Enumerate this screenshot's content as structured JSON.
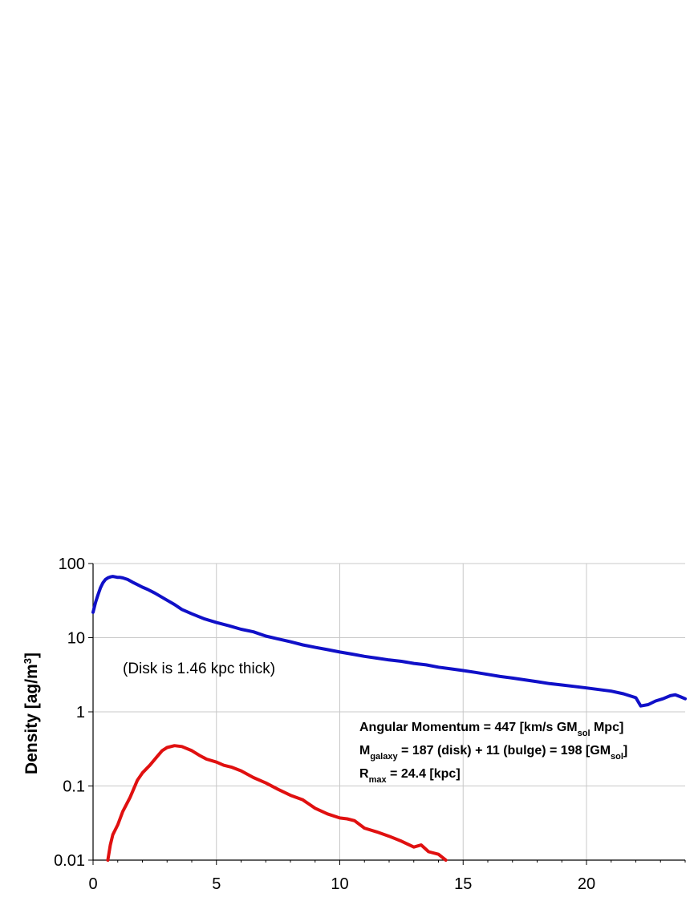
{
  "chart_data": {
    "type": "line",
    "ylabel_main": "Density [ag/m",
    "ylabel_sup": "3",
    "ylabel_end": "]",
    "y_scale": "log",
    "xlim": [
      0,
      24
    ],
    "ylim": [
      0.01,
      100
    ],
    "x_ticks": [
      "0",
      "5",
      "10",
      "15",
      "20"
    ],
    "y_ticks": [
      "100",
      "10",
      "1",
      "0.1",
      "0.01"
    ],
    "grid": true,
    "annotation_thickness": "(Disk is 1.46 kpc thick)",
    "info": {
      "line1": "Angular Momentum = 447 [km/s GM",
      "line1_sub": "sol",
      "line1_end": " Mpc]",
      "line2_pre": "M",
      "line2_sub": "galaxy",
      "line2_mid": " = 187 (disk) + 11 (bulge) = 198 [GM",
      "line2_sub2": "sol",
      "line2_end": "]",
      "line3_pre": "R",
      "line3_sub": "max",
      "line3_end": " = 24.4 [kpc]"
    },
    "series": [
      {
        "color": "#1010c8",
        "x": [
          0,
          0.1,
          0.2,
          0.3,
          0.4,
          0.5,
          0.6,
          0.7,
          0.8,
          0.9,
          1.0,
          1.1,
          1.2,
          1.4,
          1.6,
          1.8,
          2.0,
          2.2,
          2.5,
          2.8,
          3.0,
          3.3,
          3.6,
          4.0,
          4.5,
          5.0,
          5.5,
          6.0,
          6.5,
          7.0,
          7.5,
          8.0,
          8.5,
          9.0,
          9.5,
          10.0,
          10.5,
          11.0,
          11.5,
          12.0,
          12.5,
          13.0,
          13.5,
          14.0,
          14.5,
          15.0,
          15.5,
          16.0,
          16.5,
          17.0,
          17.5,
          18.0,
          18.5,
          19.0,
          19.5,
          20.0,
          20.5,
          21.0,
          21.5,
          22.0,
          22.2,
          22.5,
          22.8,
          23.1,
          23.4,
          23.6,
          23.8,
          24.0
        ],
        "y": [
          22,
          30,
          38,
          47,
          55,
          61,
          64,
          66,
          67,
          66,
          65,
          65,
          64,
          61,
          56,
          52,
          48,
          45,
          40,
          35,
          32,
          28,
          24,
          21,
          18,
          16,
          14.5,
          13,
          12,
          10.5,
          9.6,
          8.8,
          8.0,
          7.4,
          6.9,
          6.4,
          6.0,
          5.6,
          5.3,
          5.0,
          4.8,
          4.5,
          4.3,
          4.0,
          3.8,
          3.6,
          3.4,
          3.2,
          3.0,
          2.85,
          2.7,
          2.55,
          2.4,
          2.3,
          2.2,
          2.1,
          2.0,
          1.9,
          1.75,
          1.55,
          1.2,
          1.25,
          1.4,
          1.5,
          1.65,
          1.7,
          1.6,
          1.5
        ]
      },
      {
        "color": "#e01010",
        "x": [
          0.6,
          0.7,
          0.8,
          1.0,
          1.2,
          1.5,
          1.8,
          2.0,
          2.3,
          2.6,
          2.8,
          3.0,
          3.3,
          3.6,
          4.0,
          4.3,
          4.6,
          5.0,
          5.3,
          5.6,
          6.0,
          6.5,
          7.0,
          7.5,
          8.0,
          8.5,
          9.0,
          9.5,
          10.0,
          10.3,
          10.6,
          11.0,
          11.5,
          12.0,
          12.5,
          13.0,
          13.3,
          13.6,
          14.0,
          14.3
        ],
        "y": [
          0.01,
          0.016,
          0.022,
          0.03,
          0.045,
          0.07,
          0.12,
          0.15,
          0.19,
          0.25,
          0.3,
          0.33,
          0.35,
          0.34,
          0.3,
          0.26,
          0.23,
          0.21,
          0.19,
          0.18,
          0.16,
          0.13,
          0.11,
          0.09,
          0.075,
          0.065,
          0.05,
          0.042,
          0.037,
          0.036,
          0.034,
          0.027,
          0.024,
          0.021,
          0.018,
          0.015,
          0.016,
          0.013,
          0.012,
          0.01
        ]
      }
    ]
  }
}
